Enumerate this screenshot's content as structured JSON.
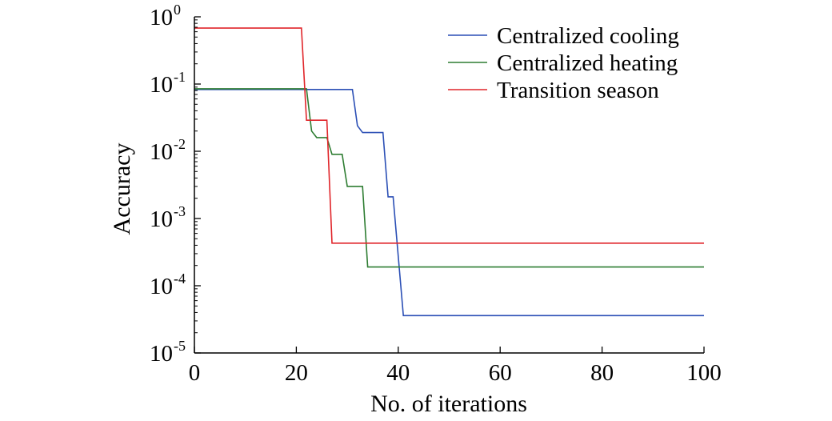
{
  "chart_data": {
    "type": "line",
    "xlabel": "No. of iterations",
    "ylabel": "Accuracy",
    "xlim": [
      0,
      100
    ],
    "ylim": [
      1e-05,
      1
    ],
    "yscale": "log",
    "x_ticks": [
      0,
      20,
      40,
      60,
      80,
      100
    ],
    "y_ticks": [
      {
        "value": 1,
        "base": "10",
        "exp": "0"
      },
      {
        "value": 0.1,
        "base": "10",
        "exp": "-1"
      },
      {
        "value": 0.01,
        "base": "10",
        "exp": "-2"
      },
      {
        "value": 0.001,
        "base": "10",
        "exp": "-3"
      },
      {
        "value": 0.0001,
        "base": "10",
        "exp": "-4"
      },
      {
        "value": 1e-05,
        "base": "10",
        "exp": "-5"
      }
    ],
    "grid": false,
    "legend_position": "top-right",
    "series": [
      {
        "name": "Centralized cooling",
        "color": "#2b4fb5",
        "points": [
          [
            0,
            0.083
          ],
          [
            31,
            0.083
          ],
          [
            32,
            0.024
          ],
          [
            33,
            0.019
          ],
          [
            37,
            0.019
          ],
          [
            38,
            0.0021
          ],
          [
            39,
            0.0021
          ],
          [
            41,
            3.6e-05
          ],
          [
            100,
            3.6e-05
          ]
        ]
      },
      {
        "name": "Centralized heating",
        "color": "#2e7d32",
        "points": [
          [
            0,
            0.085
          ],
          [
            22,
            0.085
          ],
          [
            23,
            0.02
          ],
          [
            24,
            0.016
          ],
          [
            26,
            0.016
          ],
          [
            27,
            0.009
          ],
          [
            29,
            0.009
          ],
          [
            30,
            0.003
          ],
          [
            33,
            0.003
          ],
          [
            34,
            0.00019
          ],
          [
            100,
            0.00019
          ]
        ]
      },
      {
        "name": "Transition season",
        "color": "#e0252a",
        "points": [
          [
            0,
            0.68
          ],
          [
            21,
            0.68
          ],
          [
            22,
            0.029
          ],
          [
            26,
            0.029
          ],
          [
            27,
            0.00043
          ],
          [
            100,
            0.00043
          ]
        ]
      }
    ]
  }
}
